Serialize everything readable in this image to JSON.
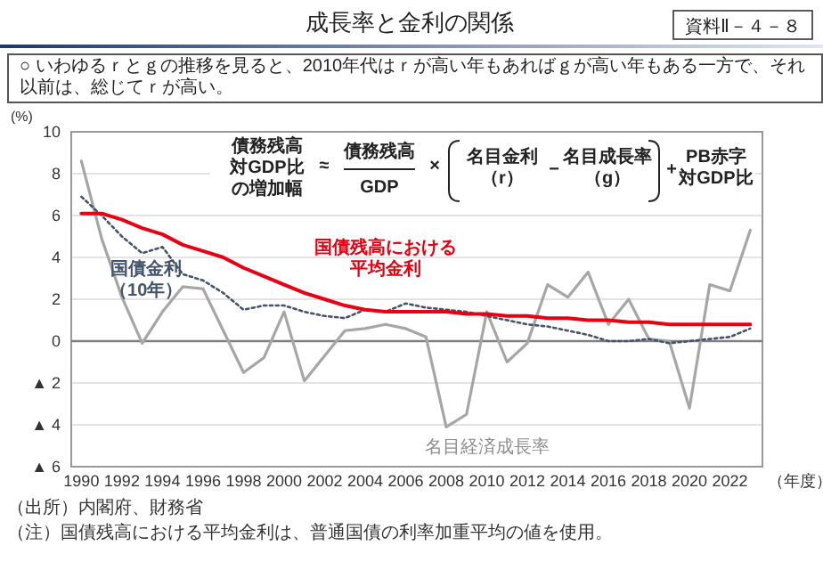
{
  "chart_data": {
    "type": "line",
    "title": "成長率と金利の関係",
    "subtitle": "○ いわゆるｒとｇの推移を見ると、2010年代はｒが高い年もあればｇが高い年もある一方で、それ以前は、総じてｒが高い。",
    "xlabel": "（年度）",
    "ylabel": "(%)",
    "x": [
      1990,
      1991,
      1992,
      1993,
      1994,
      1995,
      1996,
      1997,
      1998,
      1999,
      2000,
      2001,
      2002,
      2003,
      2004,
      2005,
      2006,
      2007,
      2008,
      2009,
      2010,
      2011,
      2012,
      2013,
      2014,
      2015,
      2016,
      2017,
      2018,
      2019,
      2020,
      2021,
      2022,
      2023
    ],
    "series": [
      {
        "name": "名目経済成長率",
        "color": "#a6a6a6",
        "line_style": "solid",
        "values": [
          8.6,
          4.9,
          2.1,
          -0.1,
          1.4,
          2.6,
          2.5,
          0.5,
          -1.5,
          -0.8,
          1.4,
          -1.9,
          -0.7,
          0.5,
          0.6,
          0.8,
          0.6,
          0.2,
          -4.1,
          -3.5,
          1.4,
          -1.0,
          -0.1,
          2.7,
          2.1,
          3.3,
          0.8,
          2.0,
          0.1,
          0.0,
          -3.2,
          2.7,
          2.4,
          5.3
        ]
      },
      {
        "name": "国債金利（10年）",
        "color": "#44546a",
        "line_style": "dotted",
        "values": [
          6.9,
          6.0,
          5.0,
          4.2,
          4.5,
          3.2,
          2.9,
          2.3,
          1.5,
          1.7,
          1.7,
          1.4,
          1.2,
          1.1,
          1.5,
          1.4,
          1.8,
          1.6,
          1.5,
          1.4,
          1.2,
          1.0,
          0.8,
          0.7,
          0.5,
          0.3,
          0.0,
          0.0,
          0.1,
          -0.1,
          0.0,
          0.1,
          0.2,
          0.6
        ]
      },
      {
        "name": "国債残高における平均金利",
        "color": "#e60012",
        "line_style": "solid",
        "values": [
          6.1,
          6.1,
          5.8,
          5.4,
          5.1,
          4.6,
          4.3,
          4.0,
          3.5,
          3.1,
          2.7,
          2.3,
          2.0,
          1.7,
          1.5,
          1.4,
          1.4,
          1.4,
          1.4,
          1.3,
          1.3,
          1.2,
          1.2,
          1.1,
          1.1,
          1.0,
          1.0,
          0.9,
          0.9,
          0.8,
          0.8,
          0.8,
          0.8,
          0.8
        ]
      }
    ],
    "xlim": [
      1989.5,
      2023.6
    ],
    "xticks": [
      1990,
      1992,
      1994,
      1996,
      1998,
      2000,
      2002,
      2004,
      2006,
      2008,
      2010,
      2012,
      2014,
      2016,
      2018,
      2020,
      2022
    ],
    "ylim": [
      -6,
      10
    ],
    "yticks": [
      10,
      8,
      6,
      4,
      2,
      0,
      {
        "value": -2,
        "label": "▲ 2"
      },
      {
        "value": -4,
        "label": "▲ 4"
      },
      {
        "value": -6,
        "label": "▲ 6"
      }
    ],
    "grid": "y",
    "ref_lines": [
      {
        "axis": "y",
        "value": 0,
        "color": "#808080"
      }
    ],
    "annotations": [
      "資料Ⅱ－４－８",
      "債務残高",
      "対GDP比",
      "の増加幅",
      "≈",
      "債務残高",
      "GDP",
      "×",
      "名目金利",
      "（r）",
      "−",
      "名目成長率",
      "（g）",
      "+",
      "PB赤字",
      "対GDP比",
      "（出所）内閣府、財務省",
      "（注）国債残高における平均金利は、普通国債の利率加重平均の値を使用。"
    ]
  }
}
